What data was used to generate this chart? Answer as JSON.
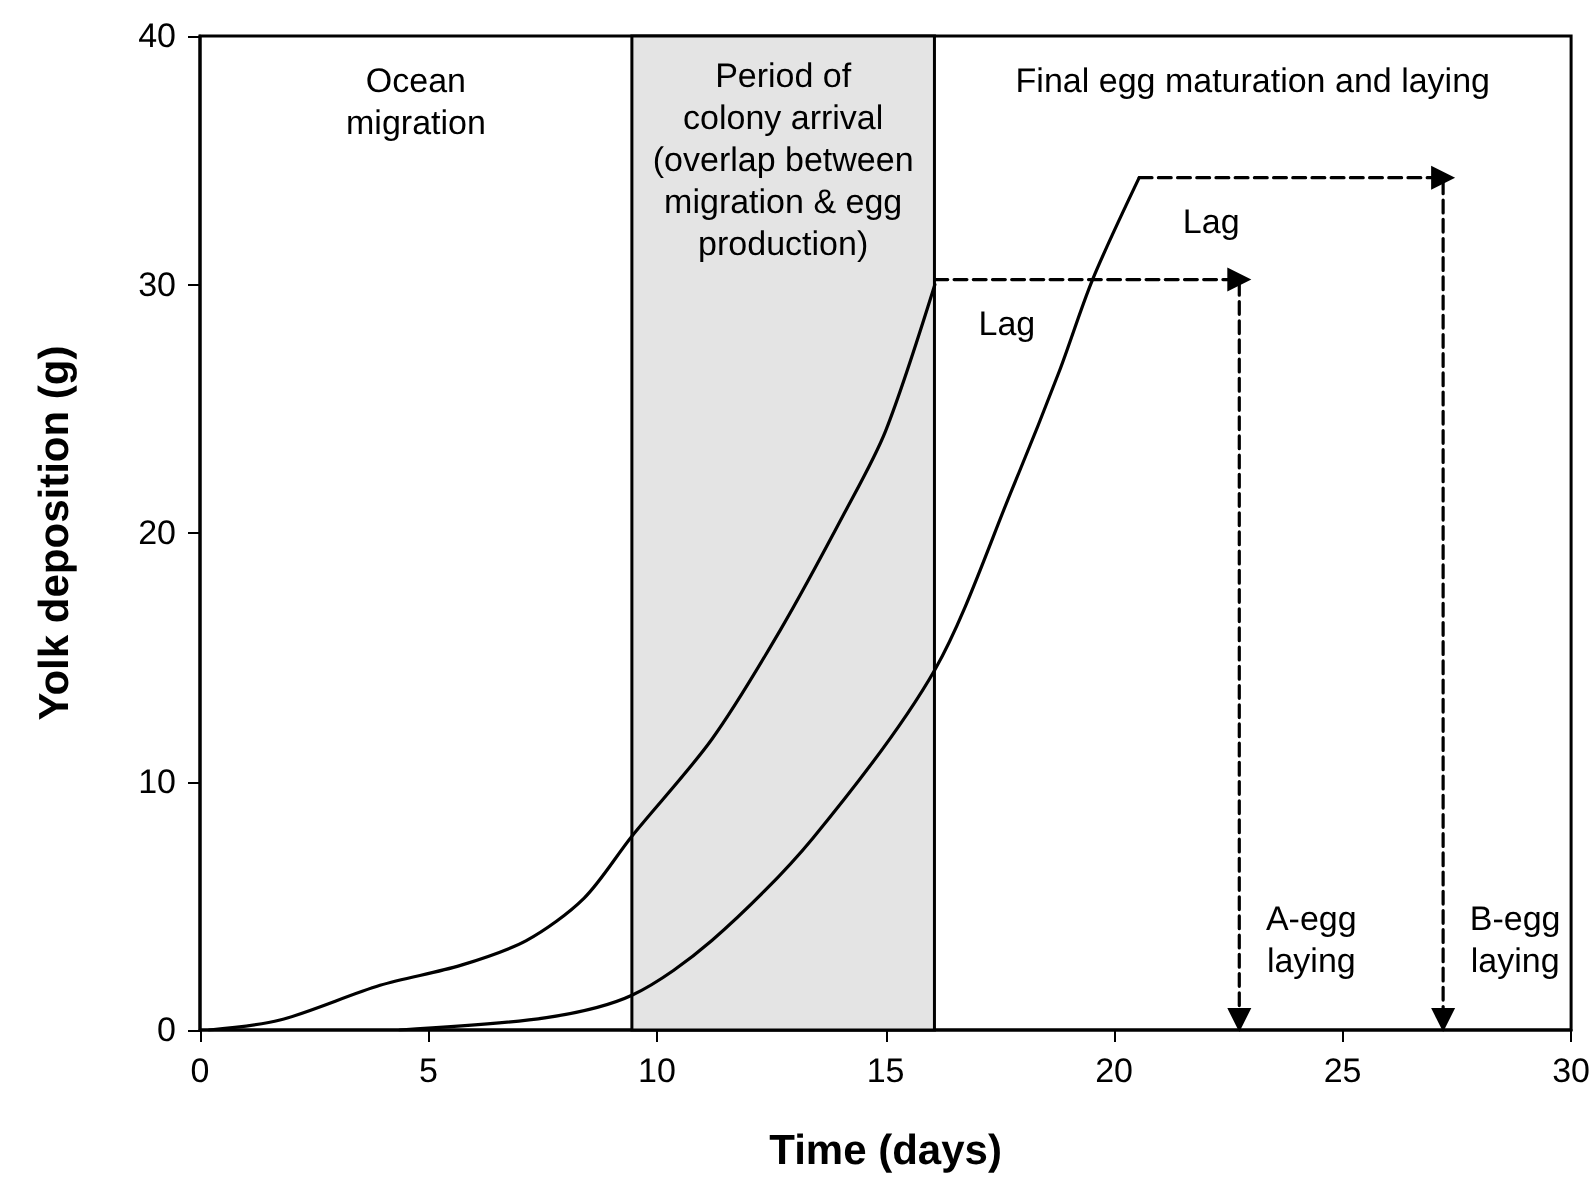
{
  "chart_data": {
    "type": "line",
    "xlabel": "Time (days)",
    "ylabel": "Yolk deposition (g)",
    "xlim": [
      0,
      30
    ],
    "xticks": [
      0,
      5,
      10,
      15,
      20,
      25,
      30
    ],
    "ylim": [
      0,
      40
    ],
    "yticks": [
      0,
      10,
      20,
      30,
      40
    ],
    "grid": false,
    "marker": "none",
    "series": [
      {
        "color": "#000000",
        "x": [
          0.2,
          1.75,
          3.94,
          5.7,
          7.14,
          8.4,
          9.45,
          11.2,
          12.7,
          14.1,
          15.0,
          16.08
        ],
        "values": [
          0,
          0.4,
          1.8,
          2.6,
          3.6,
          5.3,
          7.8,
          11.7,
          16.1,
          20.8,
          24.1,
          30.0
        ]
      },
      {
        "color": "#000000",
        "x": [
          4.37,
          7.58,
          9.45,
          11.2,
          13.4,
          16.08,
          17.8,
          18.8,
          19.53,
          20.55
        ],
        "values": [
          0,
          0.5,
          1.4,
          3.6,
          7.7,
          14.5,
          21.9,
          26.5,
          30.2,
          34.3
        ]
      },
      {
        "color": "#000000",
        "line_style": "dashed",
        "marker": "triangle",
        "x": [
          16.08,
          22.74,
          22.74
        ],
        "values": [
          30.2,
          30.2,
          0.4
        ]
      },
      {
        "color": "#000000",
        "line_style": "dashed",
        "marker": "triangle",
        "x": [
          20.55,
          27.2,
          27.2
        ],
        "values": [
          34.3,
          34.3,
          0.4
        ]
      }
    ],
    "bands": [
      {
        "axis": "x",
        "from": 9.45,
        "to": 16.07,
        "color": "#e4e4e4",
        "label": "Period of\ncolony arrival\n(overlap between\nmigration & egg\nproduction)"
      }
    ],
    "annotations": [
      "Ocean\nmigration",
      "Final egg maturation and laying",
      {
        "text": "Lag",
        "x": 16.08,
        "y": 30.2
      },
      {
        "text": "Lag",
        "x": 20.55,
        "y": 34.3
      },
      {
        "text": "A-egg\nlaying",
        "x": 22.74,
        "y": 0.4
      },
      {
        "text": "B-egg\nlaying",
        "x": 27.2,
        "y": 0.4
      }
    ]
  }
}
